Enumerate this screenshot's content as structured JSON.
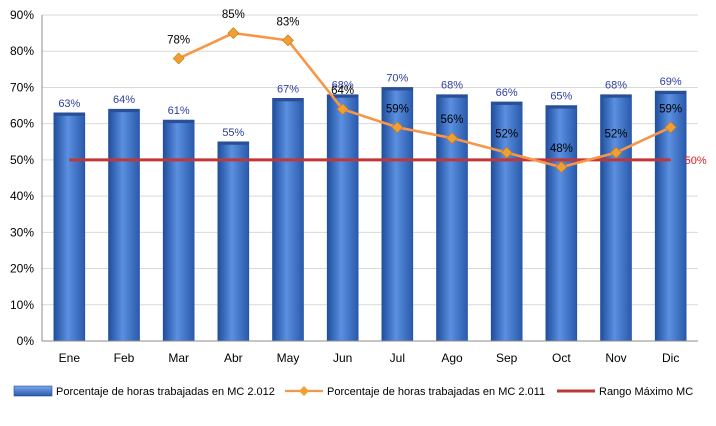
{
  "chart_data": {
    "type": "bar",
    "categories": [
      "Ene",
      "Feb",
      "Mar",
      "Abr",
      "May",
      "Jun",
      "Jul",
      "Ago",
      "Sep",
      "Oct",
      "Nov",
      "Dic"
    ],
    "series": [
      {
        "name": "Porcentaje de horas trabajadas en MC 2.012",
        "type": "bar",
        "values": [
          63,
          64,
          61,
          55,
          67,
          68,
          70,
          68,
          66,
          65,
          68,
          69
        ],
        "labels": [
          "63%",
          "64%",
          "61%",
          "55%",
          "67%",
          "68%",
          "70%",
          "68%",
          "66%",
          "65%",
          "68%",
          "69%"
        ]
      },
      {
        "name": "Porcentaje de horas trabajadas en MC 2.011",
        "type": "line",
        "values": [
          null,
          null,
          78,
          85,
          83,
          64,
          59,
          56,
          52,
          48,
          52,
          59
        ],
        "labels": [
          "",
          "",
          "78%",
          "85%",
          "83%",
          "64%",
          "59%",
          "56%",
          "52%",
          "48%",
          "52%",
          "59%"
        ]
      },
      {
        "name": "Rango Máximo MC",
        "type": "line",
        "values": [
          50,
          50,
          50,
          50,
          50,
          50,
          50,
          50,
          50,
          50,
          50,
          50
        ],
        "label": "50%"
      }
    ],
    "yticks": [
      "0%",
      "10%",
      "20%",
      "30%",
      "40%",
      "50%",
      "60%",
      "70%",
      "80%",
      "90%"
    ],
    "ylim": [
      0,
      90
    ],
    "grid": true,
    "legend": "bottom",
    "colors": {
      "bar": "#4a7bd0",
      "bar_dark": "#1f4e9c",
      "line": "#f79646",
      "marker": "#f0a030",
      "max_line": "#c0373a",
      "max_label": "#e51c24",
      "bar_label": "#2e3e9e",
      "grid": "#d9d9d9"
    }
  }
}
